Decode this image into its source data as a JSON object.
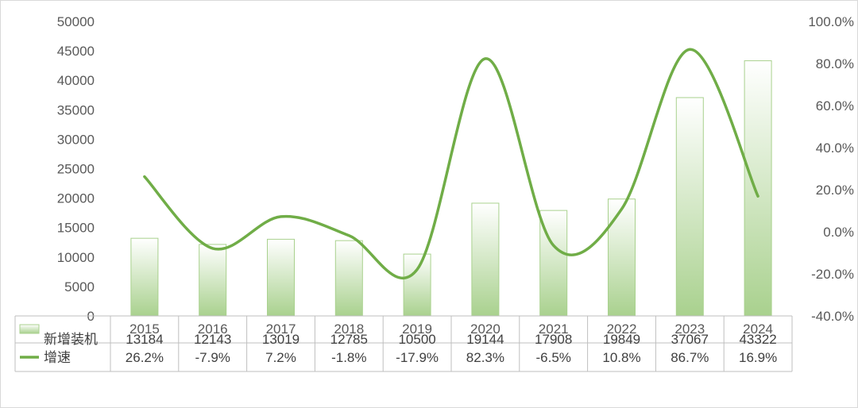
{
  "chart_data": {
    "type": "bar",
    "categories": [
      "2015",
      "2016",
      "2017",
      "2018",
      "2019",
      "2020",
      "2021",
      "2022",
      "2023",
      "2024"
    ],
    "series": [
      {
        "name": "新增装机",
        "type": "bar",
        "axis": "left",
        "values": [
          13184,
          12143,
          13019,
          12785,
          10500,
          19144,
          17908,
          19849,
          37067,
          43322
        ],
        "labels": [
          "13184",
          "12143",
          "13019",
          "12785",
          "10500",
          "19144",
          "17908",
          "19849",
          "37067",
          "43322"
        ],
        "color_top": "#ffffff",
        "color_bottom": "#a9d18e",
        "border_color": "#a9d18e"
      },
      {
        "name": "增速",
        "type": "line",
        "axis": "right",
        "values": [
          26.2,
          -7.9,
          7.2,
          -1.8,
          -17.9,
          82.3,
          -6.5,
          10.8,
          86.7,
          16.9
        ],
        "labels": [
          "26.2%",
          "-7.9%",
          "7.2%",
          "-1.8%",
          "-17.9%",
          "82.3%",
          "-6.5%",
          "10.8%",
          "86.7%",
          "16.9%"
        ],
        "color": "#70ad47"
      }
    ],
    "y_left": {
      "ylim": [
        0,
        50000
      ],
      "ticks": [
        "0",
        "5000",
        "10000",
        "15000",
        "20000",
        "25000",
        "30000",
        "35000",
        "40000",
        "45000",
        "50000"
      ]
    },
    "y_right": {
      "ylim": [
        -40,
        100
      ],
      "ticks": [
        "-40.0%",
        "-20.0%",
        "0.0%",
        "20.0%",
        "40.0%",
        "60.0%",
        "80.0%",
        "100.0%"
      ]
    },
    "grid": false,
    "legend": "data-table"
  }
}
